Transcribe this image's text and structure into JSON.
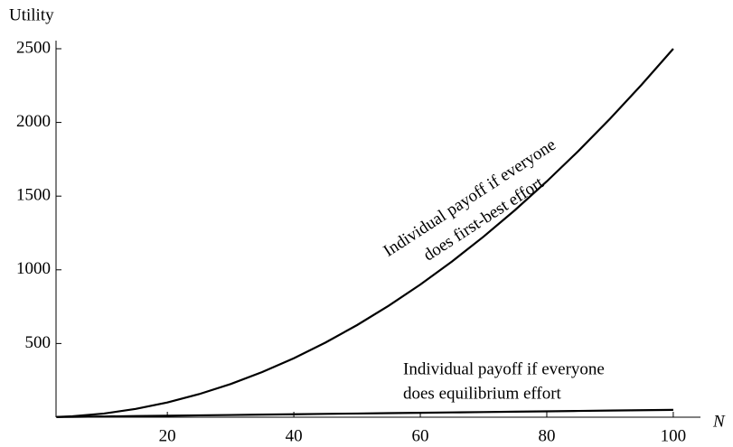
{
  "chart_data": {
    "type": "line",
    "ylabel": "Utility",
    "xlabel": "N",
    "x": [
      2.5,
      5,
      10,
      15,
      20,
      25,
      30,
      35,
      40,
      45,
      50,
      55,
      60,
      65,
      70,
      75,
      80,
      85,
      90,
      95,
      100
    ],
    "series": [
      {
        "color": "#000000",
        "values": [
          1.5625,
          6.25,
          25,
          56.25,
          100,
          156.25,
          225,
          306.25,
          400,
          506.25,
          625,
          756.25,
          900,
          1056.25,
          1225,
          1406.25,
          1600,
          1806.25,
          2025,
          2256.25,
          2500
        ]
      },
      {
        "color": "#000000",
        "values": [
          1.25,
          2.5,
          5,
          7.5,
          10,
          12.5,
          15,
          17.5,
          20,
          22.5,
          25,
          27.5,
          30,
          32.5,
          35,
          37.5,
          40,
          42.5,
          45,
          47.5,
          50
        ]
      }
    ],
    "annotations": [
      {
        "lines": [
          "Individual payoff if everyone",
          "does first-best effort"
        ]
      },
      {
        "lines": [
          "Individual payoff if everyone",
          "does equilibrium effort"
        ]
      }
    ],
    "xlim": [
      2.4,
      104.3
    ],
    "ylim": [
      0,
      2555
    ],
    "xticks": [
      20,
      40,
      60,
      80,
      100
    ],
    "yticks": [
      500,
      1000,
      1500,
      2000,
      2500
    ]
  }
}
